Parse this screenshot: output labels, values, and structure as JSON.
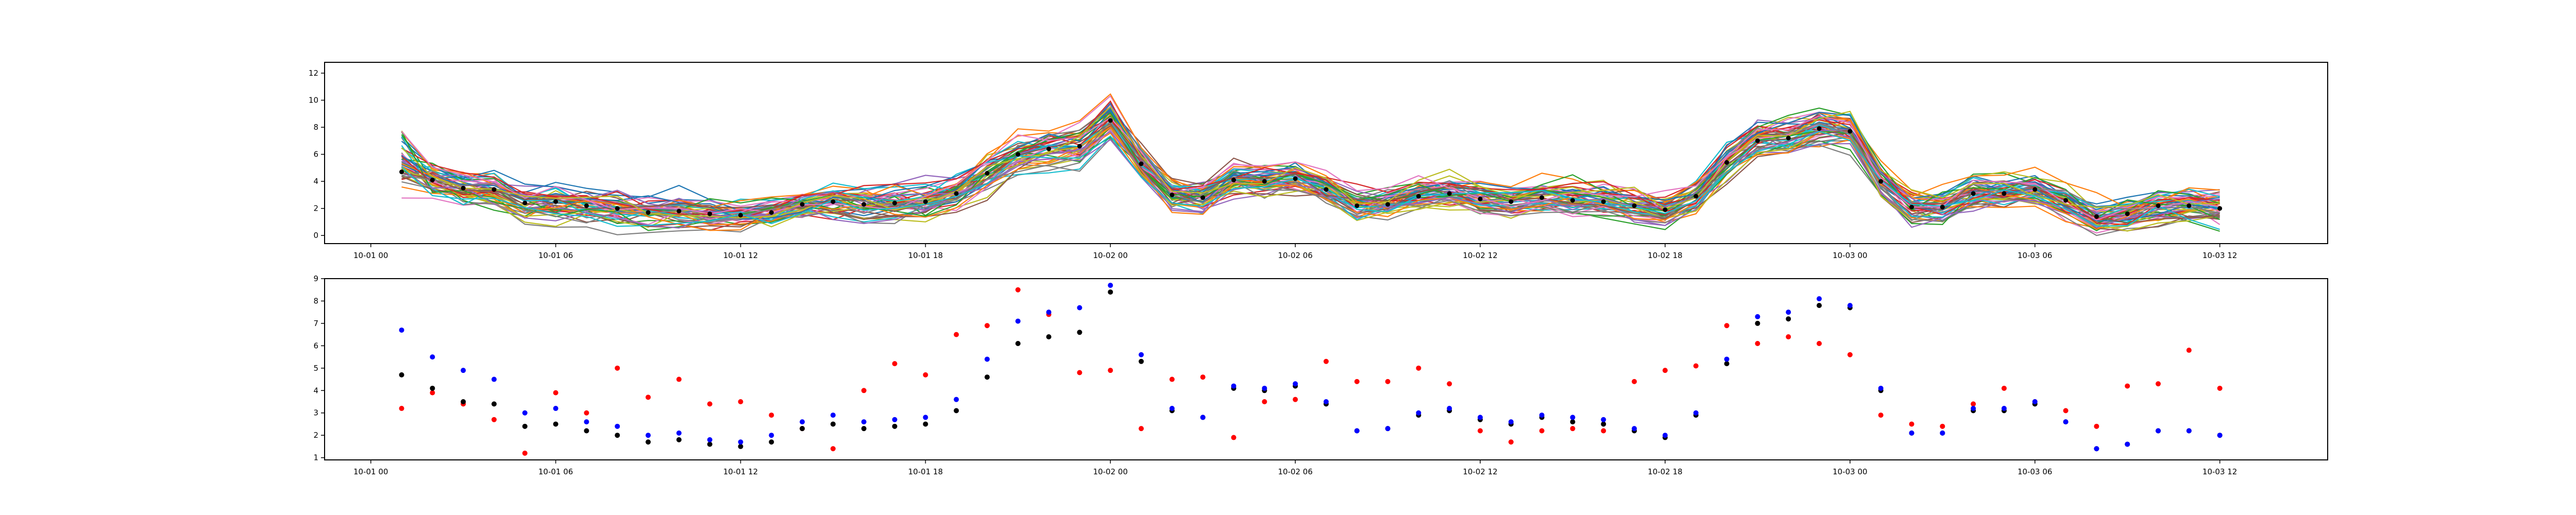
{
  "chart_data": [
    {
      "type": "line",
      "x_tick_labels": [
        "10-01 00",
        "10-01 06",
        "10-01 12",
        "10-01 18",
        "10-02 00",
        "10-02 06",
        "10-02 12",
        "10-02 18",
        "10-03 00",
        "10-03 06",
        "10-03 12"
      ],
      "x_tick_hours": [
        0,
        6,
        12,
        18,
        24,
        30,
        36,
        42,
        48,
        54,
        60
      ],
      "y_ticks": [
        0,
        2,
        4,
        6,
        8,
        10,
        12
      ],
      "xlim_hours": [
        -1.5,
        63.5
      ],
      "ylim": [
        -0.6,
        12.8
      ],
      "grid": false,
      "legend": "none",
      "num_series": 50,
      "mean_hours": [
        1,
        2,
        3,
        4,
        5,
        6,
        7,
        8,
        9,
        10,
        11,
        12,
        13,
        14,
        15,
        16,
        17,
        18,
        19,
        20,
        21,
        22,
        23,
        24,
        25,
        26,
        27,
        28,
        29,
        30,
        31,
        32,
        33,
        34,
        35,
        36,
        37,
        38,
        39,
        40,
        41,
        42,
        43,
        44,
        45,
        46,
        47,
        48,
        49,
        50,
        51,
        52,
        53,
        54,
        55,
        56,
        57,
        58,
        59,
        60
      ],
      "mean": [
        4.7,
        4.1,
        3.5,
        3.4,
        2.4,
        2.5,
        2.2,
        2.0,
        1.7,
        1.8,
        1.6,
        1.5,
        1.7,
        2.3,
        2.5,
        2.3,
        2.4,
        2.5,
        3.1,
        4.6,
        6.0,
        6.4,
        6.6,
        8.5,
        5.3,
        3.0,
        2.8,
        4.1,
        4.0,
        4.2,
        3.4,
        2.2,
        2.3,
        2.9,
        3.1,
        2.7,
        2.5,
        2.8,
        2.6,
        2.5,
        2.2,
        1.9,
        2.9,
        5.4,
        7.0,
        7.2,
        7.9,
        7.7,
        4.0,
        2.1,
        2.1,
        3.1,
        3.1,
        3.4,
        2.6,
        1.4,
        1.6,
        2.2,
        2.2,
        2.0
      ],
      "series_colors": [
        "#1f77b4",
        "#ff7f0e",
        "#2ca02c",
        "#d62728",
        "#9467bd",
        "#8c564b",
        "#e377c2",
        "#7f7f7f",
        "#bcbd22",
        "#17becf"
      ],
      "mean_marker_color": "#000000"
    },
    {
      "type": "scatter",
      "x_tick_labels": [
        "10-01 00",
        "10-01 06",
        "10-01 12",
        "10-01 18",
        "10-02 00",
        "10-02 06",
        "10-02 12",
        "10-02 18",
        "10-03 00",
        "10-03 06",
        "10-03 12"
      ],
      "x_tick_hours": [
        0,
        6,
        12,
        18,
        24,
        30,
        36,
        42,
        48,
        54,
        60
      ],
      "y_ticks": [
        1,
        2,
        3,
        4,
        5,
        6,
        7,
        8,
        9
      ],
      "xlim_hours": [
        -1.5,
        63.5
      ],
      "ylim": [
        0.9,
        9.0
      ],
      "grid": false,
      "legend": "none",
      "hours": [
        1,
        2,
        3,
        4,
        5,
        6,
        7,
        8,
        9,
        10,
        11,
        12,
        13,
        14,
        15,
        16,
        17,
        18,
        19,
        20,
        21,
        22,
        23,
        24,
        25,
        26,
        27,
        28,
        29,
        30,
        31,
        32,
        33,
        34,
        35,
        36,
        37,
        38,
        39,
        40,
        41,
        42,
        43,
        44,
        45,
        46,
        47,
        48,
        49,
        50,
        51,
        52,
        53,
        54,
        55,
        56,
        57,
        58,
        59,
        60
      ],
      "black": [
        4.7,
        4.1,
        3.5,
        3.4,
        2.4,
        2.5,
        2.2,
        2.0,
        1.7,
        1.8,
        1.6,
        1.5,
        1.7,
        2.3,
        2.5,
        2.3,
        2.4,
        2.5,
        3.1,
        4.6,
        6.1,
        6.4,
        6.6,
        8.4,
        5.3,
        3.1,
        2.8,
        4.1,
        4.0,
        4.2,
        3.4,
        2.2,
        2.3,
        2.9,
        3.1,
        2.7,
        2.5,
        2.8,
        2.6,
        2.5,
        2.2,
        1.9,
        2.9,
        5.2,
        7.0,
        7.2,
        7.8,
        7.7,
        4.0,
        2.1,
        2.1,
        3.1,
        3.1,
        3.4,
        2.6,
        1.4,
        1.6,
        2.2,
        2.2,
        2.0
      ],
      "blue": [
        6.7,
        5.5,
        4.9,
        4.5,
        3.0,
        3.2,
        2.6,
        2.4,
        2.0,
        2.1,
        1.8,
        1.7,
        2.0,
        2.6,
        2.9,
        2.6,
        2.7,
        2.8,
        3.6,
        5.4,
        7.1,
        7.5,
        7.7,
        8.7,
        5.6,
        3.2,
        2.8,
        4.2,
        4.1,
        4.3,
        3.5,
        2.2,
        2.3,
        3.0,
        3.2,
        2.8,
        2.6,
        2.9,
        2.8,
        2.7,
        2.3,
        2.0,
        3.0,
        5.4,
        7.3,
        7.5,
        8.1,
        7.8,
        4.1,
        2.1,
        2.1,
        3.2,
        3.2,
        3.5,
        2.6,
        1.4,
        1.6,
        2.2,
        2.2,
        2.0
      ],
      "red": [
        3.2,
        3.9,
        3.4,
        2.7,
        1.2,
        3.9,
        3.0,
        5.0,
        3.7,
        4.5,
        3.4,
        3.5,
        2.9,
        2.3,
        1.4,
        4.0,
        5.2,
        4.7,
        6.5,
        6.9,
        8.5,
        7.4,
        4.8,
        4.9,
        2.3,
        4.5,
        4.6,
        1.9,
        3.5,
        3.6,
        5.3,
        4.4,
        4.4,
        5.0,
        4.3,
        2.2,
        1.7,
        2.2,
        2.3,
        2.2,
        4.4,
        4.9,
        5.1,
        6.9,
        6.1,
        6.4,
        6.1,
        5.6,
        2.9,
        2.5,
        2.4,
        3.4,
        4.1,
        3.5,
        3.1,
        2.4,
        4.2,
        4.3,
        5.8,
        4.1
      ],
      "colors": {
        "black": "#000000",
        "blue": "#0000ff",
        "red": "#ff0000"
      }
    }
  ]
}
